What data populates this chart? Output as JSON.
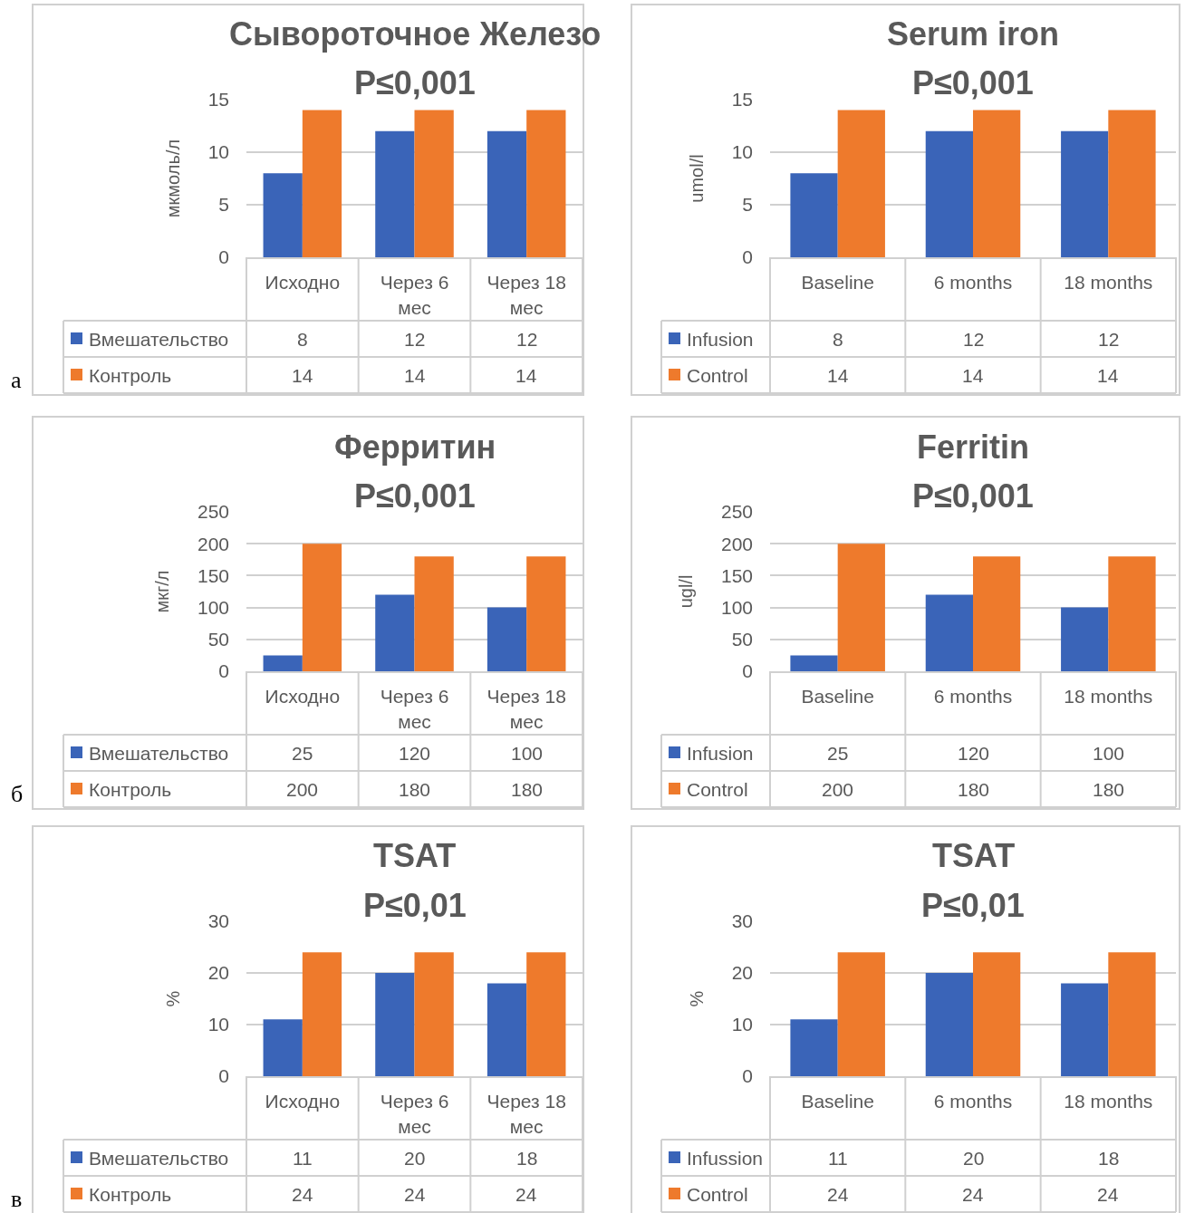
{
  "chart_data": [
    {
      "type": "bar",
      "title": "Сывороточное Железо",
      "subtitle": "P≤0,001",
      "ylabel": "мкмоль/л",
      "categories": [
        "Исходно",
        "Через 6 мес",
        "Через 18 мес"
      ],
      "series": [
        {
          "name": "Вмешательство",
          "color": "#3a64b8",
          "values": [
            8,
            12,
            12
          ]
        },
        {
          "name": "Контроль",
          "color": "#ee7a2c",
          "values": [
            14,
            14,
            14
          ]
        }
      ],
      "ylim": [
        0,
        15
      ],
      "yticks": [
        0,
        5,
        10,
        15
      ],
      "grid": "y",
      "legend": "bottom",
      "data_labels": true,
      "annotations": [
        "а"
      ]
    },
    {
      "type": "bar",
      "title": "Serum iron",
      "subtitle": "P≤0,001",
      "ylabel": "umol/l",
      "categories": [
        "Baseline",
        "6 months",
        "18 months"
      ],
      "series": [
        {
          "name": "Infusion",
          "color": "#3a64b8",
          "values": [
            8,
            12,
            12
          ]
        },
        {
          "name": "Control",
          "color": "#ee7a2c",
          "values": [
            14,
            14,
            14
          ]
        }
      ],
      "ylim": [
        0,
        15
      ],
      "yticks": [
        0,
        5,
        10,
        15
      ],
      "grid": "y",
      "legend": "bottom",
      "data_labels": true
    },
    {
      "type": "bar",
      "title": "Ферритин",
      "subtitle": "P≤0,001",
      "ylabel": "мкг/л",
      "categories": [
        "Исходно",
        "Через 6 мес",
        "Через 18 мес"
      ],
      "series": [
        {
          "name": "Вмешательство",
          "color": "#3a64b8",
          "values": [
            25,
            120,
            100
          ]
        },
        {
          "name": "Контроль",
          "color": "#ee7a2c",
          "values": [
            200,
            180,
            180
          ]
        }
      ],
      "ylim": [
        0,
        250
      ],
      "yticks": [
        0,
        50,
        100,
        150,
        200,
        250
      ],
      "grid": "y",
      "legend": "bottom",
      "data_labels": true,
      "annotations": [
        "б"
      ]
    },
    {
      "type": "bar",
      "title": "Ferritin",
      "subtitle": "P≤0,001",
      "ylabel": "ugl/l",
      "categories": [
        "Baseline",
        "6 months",
        "18 months"
      ],
      "series": [
        {
          "name": "Infusion",
          "color": "#3a64b8",
          "values": [
            25,
            120,
            100
          ]
        },
        {
          "name": "Control",
          "color": "#ee7a2c",
          "values": [
            200,
            180,
            180
          ]
        }
      ],
      "ylim": [
        0,
        250
      ],
      "yticks": [
        0,
        50,
        100,
        150,
        200,
        250
      ],
      "grid": "y",
      "legend": "bottom",
      "data_labels": true
    },
    {
      "type": "bar",
      "title": "TSAT",
      "subtitle": "P≤0,01",
      "ylabel": "%",
      "categories": [
        "Исходно",
        "Через 6 мес",
        "Через 18 мес"
      ],
      "series": [
        {
          "name": "Вмешательство",
          "color": "#3a64b8",
          "values": [
            11,
            20,
            18
          ]
        },
        {
          "name": "Контроль",
          "color": "#ee7a2c",
          "values": [
            24,
            24,
            24
          ]
        }
      ],
      "ylim": [
        0,
        30
      ],
      "yticks": [
        0,
        10,
        20,
        30
      ],
      "grid": "y",
      "legend": "bottom",
      "data_labels": true,
      "annotations": [
        "в"
      ]
    },
    {
      "type": "bar",
      "title": "TSAT",
      "subtitle": "P≤0,01",
      "ylabel": "%",
      "categories": [
        "Baseline",
        "6 months",
        "18 months"
      ],
      "series": [
        {
          "name": "Infussion",
          "color": "#3a64b8",
          "values": [
            11,
            20,
            18
          ]
        },
        {
          "name": "Control",
          "color": "#ee7a2c",
          "values": [
            24,
            24,
            24
          ]
        }
      ],
      "ylim": [
        0,
        30
      ],
      "yticks": [
        0,
        10,
        20,
        30
      ],
      "grid": "y",
      "legend": "bottom",
      "data_labels": true
    }
  ]
}
